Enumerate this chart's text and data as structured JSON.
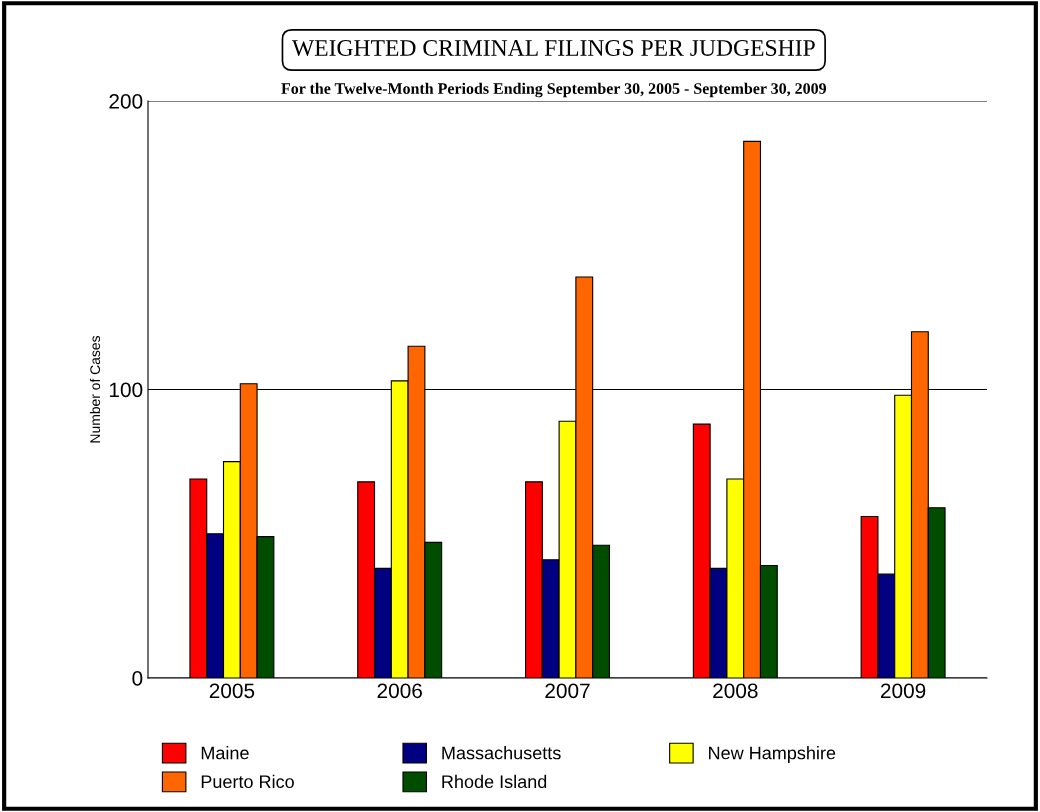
{
  "chart_data": {
    "type": "bar",
    "title": "WEIGHTED CRIMINAL FILINGS PER JUDGESHIP",
    "subtitle": "For the Twelve-Month Periods Ending September 30, 2005 - September 30, 2009",
    "ylabel": "Number of Cases",
    "categories": [
      "2005",
      "2006",
      "2007",
      "2008",
      "2009"
    ],
    "series": [
      {
        "name": "Maine",
        "color": "#ff0000",
        "values": [
          69,
          68,
          68,
          88,
          56
        ]
      },
      {
        "name": "Massachusetts",
        "color": "#000080",
        "values": [
          50,
          38,
          41,
          38,
          36
        ]
      },
      {
        "name": "New Hampshire",
        "color": "#ffff00",
        "values": [
          75,
          103,
          89,
          69,
          98
        ]
      },
      {
        "name": "Puerto Rico",
        "color": "#ff6600",
        "values": [
          102,
          115,
          139,
          186,
          120
        ]
      },
      {
        "name": "Rhode Island",
        "color": "#004d00",
        "values": [
          49,
          47,
          46,
          39,
          59
        ]
      }
    ],
    "ylim": [
      0,
      200
    ],
    "yticks": [
      0,
      100,
      200
    ],
    "grid": "y",
    "legend": "bottom"
  }
}
